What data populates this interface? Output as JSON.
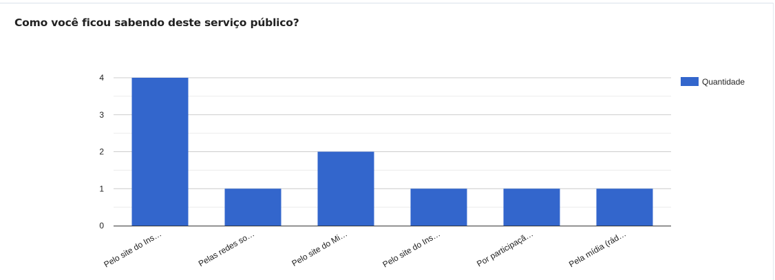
{
  "chart_data": {
    "type": "bar",
    "title": "Como você ficou sabendo deste serviço público?",
    "categories": [
      "Pelo site do Ins…",
      "Pelas redes so…",
      "Pelo site do Mi…",
      "Pelo site do Ins…",
      "Por participaçã…",
      "Pela mídia (rád…"
    ],
    "series": [
      {
        "name": "Quantidade",
        "values": [
          4,
          1,
          2,
          1,
          1,
          1
        ],
        "color": "#3366cc"
      }
    ],
    "yticks": [
      0,
      1,
      2,
      3,
      4
    ],
    "ylim": [
      0,
      4
    ],
    "grid": true,
    "legend": "right"
  }
}
